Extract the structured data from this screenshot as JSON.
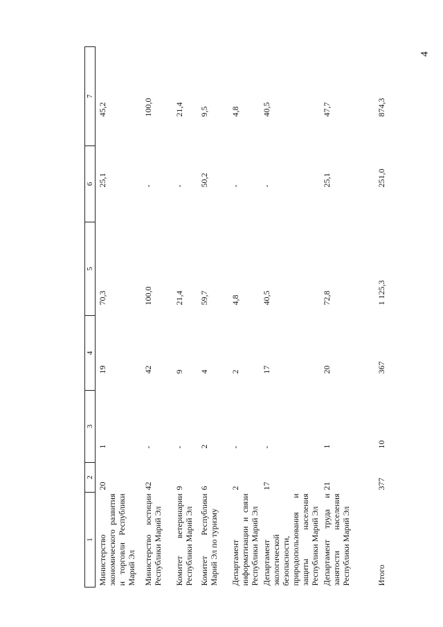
{
  "page_number": "4",
  "headers": [
    "1",
    "2",
    "3",
    "4",
    "5",
    "6",
    "7"
  ],
  "rows": [
    {
      "name": "Министерство экономического развития и торговли Республики Марий Эл",
      "c2": "20",
      "c3": "1",
      "c4": "19",
      "c5": "70,3",
      "c6": "25,1",
      "c7": "45,2"
    },
    {
      "name": "Министерство юстиции Республики Марий Эл",
      "c2": "42",
      "c3": "-",
      "c4": "42",
      "c5": "100,0",
      "c6": "-",
      "c7": "100,0"
    },
    {
      "name": "Комитет ветеринарии Республики Марий Эл",
      "c2": "9",
      "c3": "-",
      "c4": "9",
      "c5": "21,4",
      "c6": "-",
      "c7": "21,4"
    },
    {
      "name": "Комитет Республики Марий Эл по туризму",
      "c2": "6",
      "c3": "2",
      "c4": "4",
      "c5": "59,7",
      "c6": "50,2",
      "c7": "9,5"
    },
    {
      "name": "Департамент информатизации и связи Республики Марий Эл",
      "c2": "2",
      "c3": "-",
      "c4": "2",
      "c5": "4,8",
      "c6": "-",
      "c7": "4,8"
    },
    {
      "name": "Департамент экологической безопасности, природопользования и защиты населения Республики Марий Эл",
      "c2": "17",
      "c3": "-",
      "c4": "17",
      "c5": "40,5",
      "c6": "-",
      "c7": "40,5"
    },
    {
      "name": "Департамент труда и занятости населения Республики Марий Эл",
      "c2": "21",
      "c3": "1",
      "c4": "20",
      "c5": "72,8",
      "c6": "25,1",
      "c7": "47,7"
    }
  ],
  "total": {
    "name": "Итого",
    "c2": "377",
    "c3": "10",
    "c4": "367",
    "c5": "1 125,3",
    "c6": "251,0",
    "c7": "874,3"
  }
}
